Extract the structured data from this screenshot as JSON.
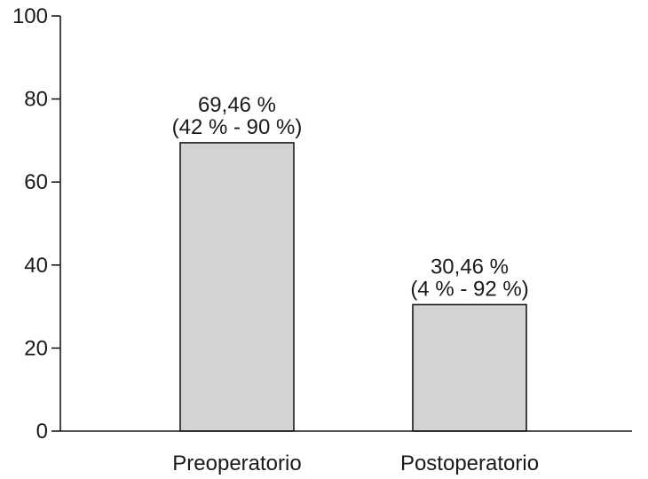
{
  "chart_data": {
    "type": "bar",
    "title": "",
    "xlabel": "",
    "ylabel": "",
    "categories": [
      "Preoperatorio",
      "Postoperatorio"
    ],
    "values": [
      69.46,
      30.46
    ],
    "data_labels": [
      [
        "69,46 %",
        "(42 % - 90 %)"
      ],
      [
        "30,46 %",
        "(4 % - 92 %)"
      ]
    ],
    "ylim": [
      0,
      100
    ],
    "yticks": [
      0,
      20,
      40,
      60,
      80,
      100
    ],
    "ytick_labels": [
      "0",
      "20",
      "40",
      "60",
      "80",
      "100"
    ],
    "grid": false,
    "bar_color": "#d3d3d3",
    "line_color": "#1a1a1a"
  }
}
